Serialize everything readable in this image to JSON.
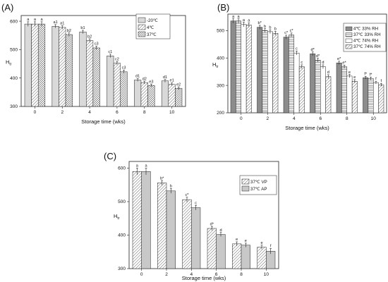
{
  "colors": {
    "axis": "#222222",
    "light_gray": "#d9d9d9",
    "mid_gray": "#c8c8c8",
    "dark_gray": "#8c8c8c",
    "white": "#ffffff"
  },
  "chart_data": [
    {
      "panel_label": "(A)",
      "type": "bar",
      "xlabel": "Storage time (wks)",
      "ylabel": "H",
      "ylabel_sub": "tr",
      "categories": [
        "0",
        "2",
        "4",
        "6",
        "8",
        "10"
      ],
      "ylim": [
        300,
        620
      ],
      "yticks": [
        300,
        400,
        500,
        600
      ],
      "legend_position": "top-right",
      "series": [
        {
          "name": "-20℃",
          "fill": "light",
          "values": [
            590,
            582,
            562,
            478,
            393,
            390
          ],
          "errors": [
            8,
            6,
            6,
            6,
            5,
            5
          ],
          "labels": [
            "a",
            "a1",
            "b1",
            "c1",
            "d1",
            "d1"
          ]
        },
        {
          "name": "4℃",
          "fill": "hatch_diag",
          "values": [
            590,
            578,
            532,
            452,
            384,
            378
          ],
          "errors": [
            8,
            6,
            6,
            6,
            5,
            5
          ],
          "labels": [
            "a",
            "a1",
            "b2",
            "c2",
            "d2",
            "e1"
          ]
        },
        {
          "name": "37℃",
          "fill": "hatch_cross",
          "values": [
            590,
            553,
            506,
            422,
            374,
            364
          ],
          "errors": [
            8,
            6,
            6,
            6,
            5,
            5
          ],
          "labels": [
            "a",
            "b2",
            "c3",
            "c3",
            "e3",
            "e2"
          ]
        }
      ]
    },
    {
      "panel_label": "(B)",
      "type": "bar",
      "xlabel": "Storage time (wks)",
      "ylabel": "H",
      "ylabel_sub": "tr",
      "categories": [
        "0",
        "2",
        "4",
        "6",
        "8",
        "10"
      ],
      "ylim": [
        200,
        560
      ],
      "yticks": [
        200,
        300,
        400,
        500
      ],
      "legend_position": "top-right",
      "series": [
        {
          "name": "4℃ 33% RH",
          "fill": "dark",
          "values": [
            535,
            512,
            476,
            415,
            382,
            328
          ],
          "errors": [
            8,
            7,
            7,
            7,
            6,
            5
          ],
          "labels": [
            "a",
            "b*",
            "c*",
            "d*",
            "e*",
            "f*"
          ]
        },
        {
          "name": "37℃ 33% RH",
          "fill": "hatch_h",
          "values": [
            535,
            500,
            484,
            392,
            368,
            325
          ],
          "errors": [
            8,
            7,
            7,
            7,
            6,
            5
          ],
          "labels": [
            "a",
            "b",
            "c*",
            "d*",
            "e*",
            "f*"
          ]
        },
        {
          "name": "4℃ 74% RH",
          "fill": "white",
          "values": [
            522,
            496,
            418,
            368,
            334,
            310
          ],
          "errors": [
            8,
            7,
            7,
            7,
            6,
            5
          ],
          "labels": [
            "a",
            "b",
            "c",
            "d",
            "e",
            "f"
          ]
        },
        {
          "name": "37℃ 74% RH",
          "fill": "hatch_diag",
          "values": [
            520,
            490,
            368,
            332,
            315,
            302
          ],
          "errors": [
            8,
            7,
            7,
            7,
            6,
            5
          ],
          "labels": [
            "a",
            "b",
            "c",
            "d",
            "e",
            "f"
          ]
        }
      ]
    },
    {
      "panel_label": "(C)",
      "type": "bar",
      "xlabel": "Storage time (wks)",
      "ylabel": "H",
      "ylabel_sub": "tr",
      "categories": [
        "0",
        "2",
        "4",
        "6",
        "8",
        "10"
      ],
      "ylim": [
        300,
        620
      ],
      "yticks": [
        300,
        400,
        500,
        600
      ],
      "legend_position": "top-right",
      "series": [
        {
          "name": "37℃ VP",
          "fill": "hatch_diag",
          "values": [
            590,
            556,
            506,
            420,
            374,
            364
          ],
          "errors": [
            10,
            7,
            7,
            6,
            6,
            6
          ],
          "labels": [
            "a",
            "b*",
            "c*",
            "d*",
            "e",
            "e"
          ]
        },
        {
          "name": "37℃ AP",
          "fill": "mid",
          "values": [
            590,
            532,
            482,
            402,
            370,
            352
          ],
          "errors": [
            10,
            7,
            7,
            6,
            6,
            8
          ],
          "labels": [
            "a",
            "b",
            "c",
            "d",
            "e",
            "f"
          ]
        }
      ]
    }
  ]
}
